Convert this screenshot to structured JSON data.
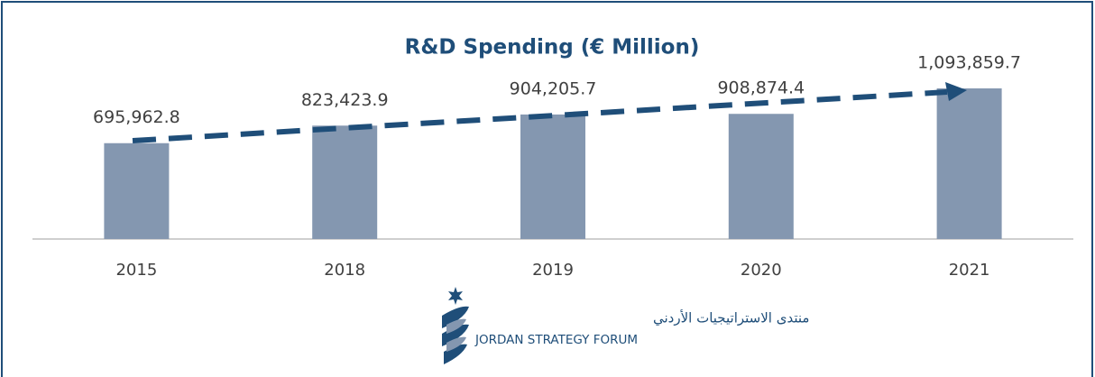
{
  "chart_data": {
    "type": "bar",
    "title": "R&D Spending (€ Million)",
    "categories": [
      "2015",
      "2018",
      "2019",
      "2020",
      "2021"
    ],
    "values": [
      695962.8,
      823423.9,
      904205.7,
      908874.4,
      1093859.7
    ],
    "value_labels": [
      "695,962.8",
      "823,423.9",
      "904,205.7",
      "908,874.4",
      "1,093,859.7"
    ],
    "color": "#8497b0"
  },
  "logo": {
    "arabic": "منتدى الاستراتيجيات الأردني",
    "english": "JORDAN STRATEGY FORUM"
  }
}
